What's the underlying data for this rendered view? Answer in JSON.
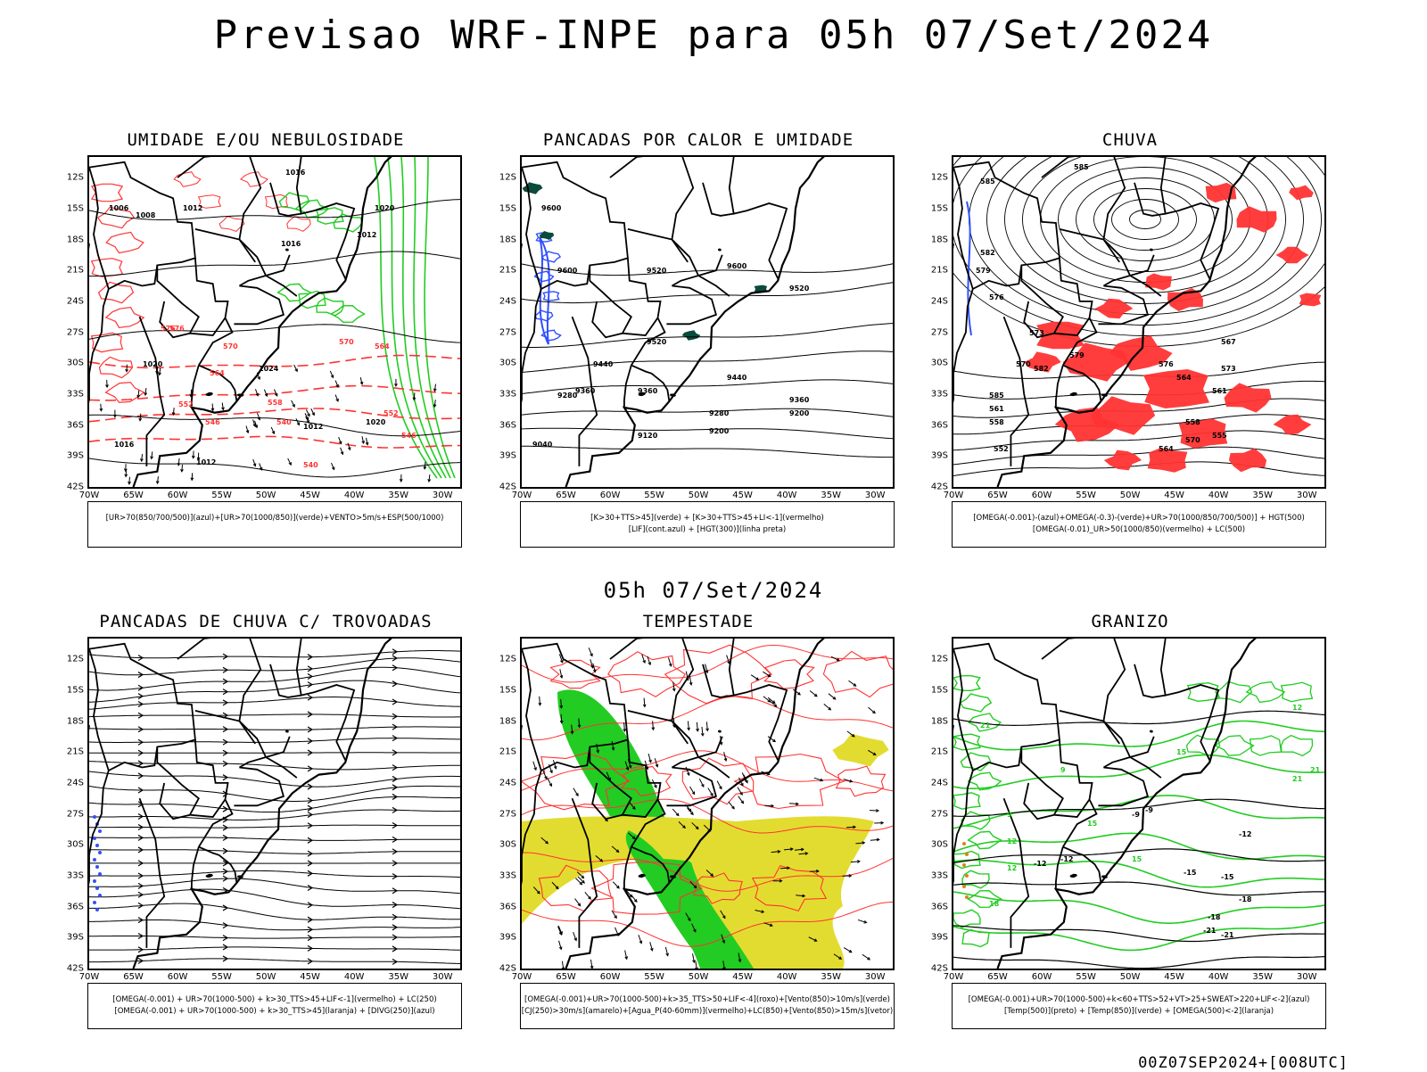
{
  "title": "Previsao WRF-INPE  para 05h 07/Set/2024",
  "subtitle": "05h 07/Set/2024",
  "footer": "00Z07SEP2024+[008UTC]",
  "lat_ticks": [
    "12S",
    "15S",
    "18S",
    "21S",
    "24S",
    "27S",
    "30S",
    "33S",
    "36S",
    "39S",
    "42S"
  ],
  "lon_ticks": [
    "70W",
    "65W",
    "60W",
    "55W",
    "50W",
    "45W",
    "40W",
    "35W",
    "30W"
  ],
  "colors": {
    "blue": "#3050ff",
    "green": "#22cc22",
    "red": "#ff3333",
    "yellow": "#e3dc30",
    "dark_green": "#0b4a3c",
    "orange": "#e08020",
    "contour_black": "#000000"
  },
  "panels": [
    {
      "id": "umidade",
      "title": "UMIDADE E/OU NEBULOSIDADE",
      "legend": [
        "[UR>70(850/700/500)](azul)+[UR>70(1000/850)](verde)+VENTO>5m/s+ESP(500/1000)"
      ],
      "contour_labels": {
        "black": [
          "1006",
          "1008",
          "1012",
          "1016",
          "1020",
          "1012",
          "1016",
          "1020",
          "1024",
          "1020",
          "1012",
          "1012",
          "1016"
        ],
        "red": [
          "576",
          "570",
          "564",
          "558",
          "552",
          "546",
          "540",
          "576",
          "570",
          "564",
          "552",
          "546",
          "540"
        ]
      }
    },
    {
      "id": "pancadas-calor",
      "title": "PANCADAS POR CALOR E UMIDADE",
      "legend": [
        "[K>30+TTS>45](verde) + [K>30+TTS>45+LI<-1](vermelho)",
        "[LIF](cont.azul) + [HGT(300)](linha preta)"
      ],
      "contour_labels": {
        "black": [
          "9600",
          "9520",
          "9600",
          "9600",
          "9520",
          "9440",
          "9520",
          "9440",
          "9360",
          "9280",
          "9360",
          "9280",
          "9200",
          "9120",
          "9040",
          "9360",
          "9200"
        ]
      }
    },
    {
      "id": "chuva",
      "title": "CHUVA",
      "legend": [
        "[OMEGA(-0.001)-(azul)+OMEGA(-0.3)-(verde)+UR>70(1000/850/700/500)] + HGT(500)",
        "[OMEGA(-0.01)_UR>50(1000/850)(vermelho) + LC(500)"
      ],
      "contour_labels": {
        "black": [
          "585",
          "585",
          "582",
          "579",
          "576",
          "573",
          "570",
          "567",
          "564",
          "561",
          "558",
          "555",
          "552",
          "585",
          "582",
          "579",
          "576",
          "573",
          "570",
          "564",
          "561",
          "558"
        ]
      }
    },
    {
      "id": "pancadas-trovoadas",
      "title": "PANCADAS DE CHUVA C/ TROVOADAS",
      "legend": [
        "[OMEGA(-0.001) + UR>70(1000-500) + k>30_TTS>45+LIF<-1](vermelho) + LC(250)",
        "[OMEGA(-0.001) + UR>70(1000-500) + k>30_TTS>45](laranja) + [DIVG(250)](azul)"
      ],
      "contour_labels": {
        "black": []
      }
    },
    {
      "id": "tempestade",
      "title": "TEMPESTADE",
      "legend": [
        "[OMEGA(-0.001)+UR>70(1000-500)+k>35_TTS>50+LIF<-4](roxo)+[Vento(850)>10m/s](verde)",
        "[CJ(250)>30m/s](amarelo)+[Agua_P(40-60mm)](vermelho)+LC(850)+[Vento(850)>15m/s](vetor)"
      ],
      "contour_labels": {
        "black": []
      }
    },
    {
      "id": "granizo",
      "title": "GRANIZO",
      "legend": [
        "[OMEGA(-0.001)+UR>70(1000-500)+k<60+TTS>52+VT>25+SWEAT>220+LIF<-2](azul)",
        "[Temp(500)](preto) + [Temp(850)](verde) + [OMEGA(500)<-2](laranja)"
      ],
      "contour_labels": {
        "black": [
          "-9",
          "-12",
          "-12",
          "-15",
          "-18",
          "-21",
          "-9",
          "-12",
          "-15",
          "-18",
          "-21"
        ],
        "green": [
          "9",
          "12",
          "15",
          "21",
          "9",
          "12",
          "15",
          "18",
          "21",
          "21",
          "15",
          "12"
        ]
      }
    }
  ]
}
